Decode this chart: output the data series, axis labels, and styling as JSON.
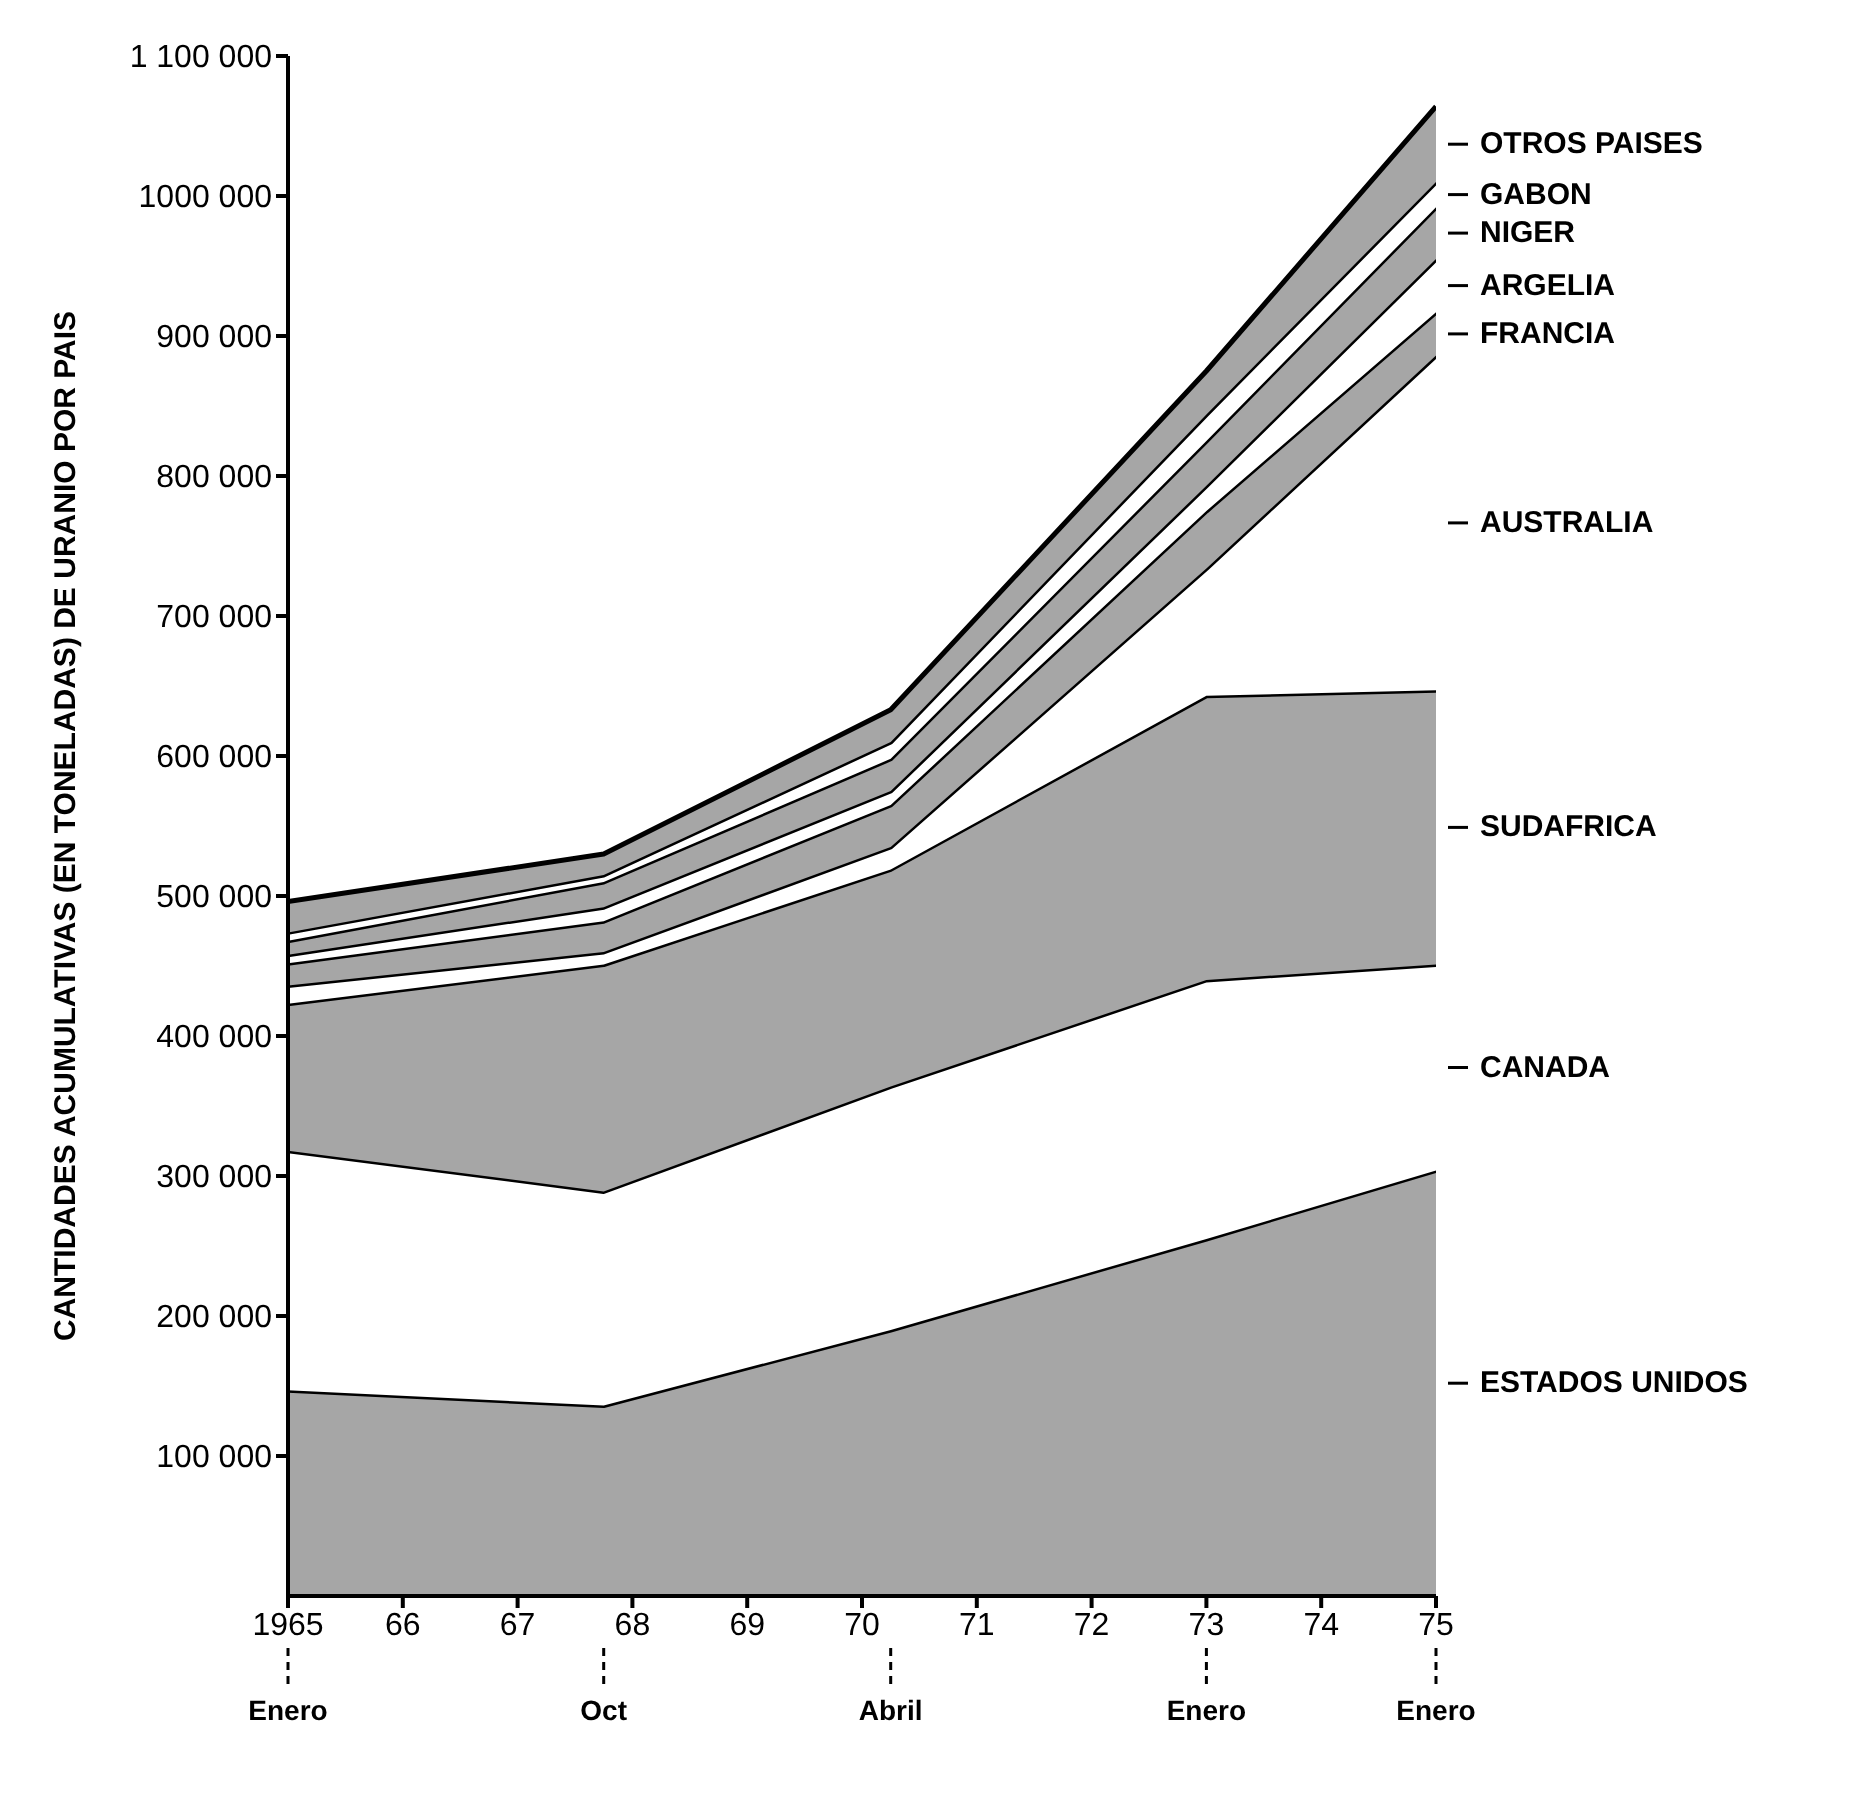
{
  "chart_data": {
    "type": "area",
    "stacked": true,
    "ylabel": "CANTIDADES ACUMULATIVAS (EN TONELADAS) DE URANIO POR PAIS",
    "x": [
      "1965-01",
      "1967-10",
      "1970-04",
      "1973-01",
      "1975-01"
    ],
    "series": [
      {
        "name": "ESTADOS UNIDOS",
        "color": "#a6a6a6",
        "values": [
          147000,
          136000,
          190000,
          255000,
          304000
        ]
      },
      {
        "name": "CANADA",
        "color": "#ffffff",
        "values": [
          171000,
          153000,
          174000,
          185000,
          147000
        ]
      },
      {
        "name": "SUDAFRICA",
        "color": "#a6a6a6",
        "values": [
          105000,
          162000,
          155000,
          203000,
          196000
        ]
      },
      {
        "name": "AUSTRALIA",
        "color": "#ffffff",
        "values": [
          13000,
          9000,
          16000,
          91000,
          239000
        ]
      },
      {
        "name": "FRANCIA",
        "color": "#a6a6a6",
        "values": [
          16000,
          22000,
          30000,
          41000,
          31000
        ]
      },
      {
        "name": "ARGELIA",
        "color": "#ffffff",
        "values": [
          6000,
          10000,
          10000,
          18000,
          38000
        ]
      },
      {
        "name": "NIGER",
        "color": "#a6a6a6",
        "values": [
          10000,
          18000,
          23000,
          32000,
          37000
        ]
      },
      {
        "name": "GABON",
        "color": "#ffffff",
        "values": [
          6000,
          5000,
          12000,
          19000,
          18000
        ]
      },
      {
        "name": "OTROS PAISES",
        "color": "#a6a6a6",
        "values": [
          22000,
          15000,
          23000,
          31000,
          54000
        ]
      }
    ],
    "xlim": [
      "1965",
      "1975"
    ],
    "xticks": [
      {
        "value": "1965",
        "label": "1965"
      },
      {
        "value": "1966",
        "label": "66"
      },
      {
        "value": "1967",
        "label": "67"
      },
      {
        "value": "1968",
        "label": "68"
      },
      {
        "value": "1969",
        "label": "69"
      },
      {
        "value": "1970",
        "label": "70"
      },
      {
        "value": "1971",
        "label": "71"
      },
      {
        "value": "1972",
        "label": "72"
      },
      {
        "value": "1973",
        "label": "73"
      },
      {
        "value": "1974",
        "label": "74"
      },
      {
        "value": "1975",
        "label": "75"
      }
    ],
    "ylim": [
      0,
      1100000
    ],
    "yticks": [
      {
        "value": 100000,
        "label": "100 000"
      },
      {
        "value": 200000,
        "label": "200 000"
      },
      {
        "value": 300000,
        "label": "300 000"
      },
      {
        "value": 400000,
        "label": "400 000"
      },
      {
        "value": 500000,
        "label": "500 000"
      },
      {
        "value": 600000,
        "label": "600 000"
      },
      {
        "value": 700000,
        "label": "700 000"
      },
      {
        "value": 800000,
        "label": "800 000"
      },
      {
        "value": 900000,
        "label": "900 000"
      },
      {
        "value": 1000000,
        "label": "1000 000"
      },
      {
        "value": 1100000,
        "label": "1 100 000"
      }
    ],
    "annotations": [
      {
        "text": "Enero",
        "x": "1965-01"
      },
      {
        "text": "Oct",
        "x": "1967-10"
      },
      {
        "text": "Abril",
        "x": "1970-04"
      },
      {
        "text": "Enero",
        "x": "1973-01"
      },
      {
        "text": "Enero",
        "x": "1975-01"
      }
    ],
    "grid": false,
    "legend": "right"
  }
}
